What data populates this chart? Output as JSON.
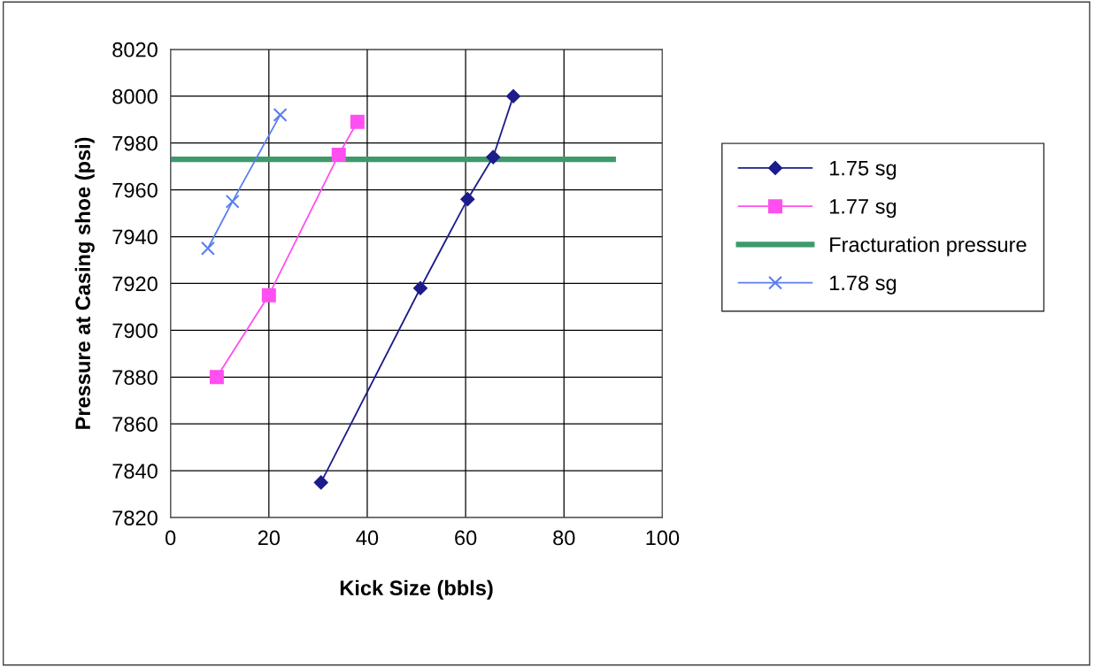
{
  "chart_data": {
    "type": "line",
    "xlabel": "Kick Size (bbls)",
    "ylabel": "Pressure at Casing shoe (psi)",
    "xlim": [
      0,
      100
    ],
    "xticks": [
      0,
      20,
      40,
      60,
      80,
      100
    ],
    "ylim": [
      7820,
      8020
    ],
    "yticks": [
      7820,
      7840,
      7860,
      7880,
      7900,
      7920,
      7940,
      7960,
      7980,
      8000,
      8020
    ],
    "grid": true,
    "legend": "right",
    "series": [
      {
        "name": "1.75 sg",
        "color": "#1c1c8a",
        "marker": "diamond",
        "x": [
          30.6,
          50.8,
          60.4,
          65.6,
          69.7
        ],
        "values": [
          7835,
          7918,
          7956,
          7974,
          8000
        ]
      },
      {
        "name": "1.77 sg",
        "color": "#ff4ff0",
        "marker": "square",
        "x": [
          9.4,
          20.0,
          34.2,
          38.0
        ],
        "values": [
          7880,
          7915,
          7975,
          7989
        ]
      },
      {
        "name": "Fracturation pressure",
        "color": "#3d9a6b",
        "marker": "none",
        "x": [
          0,
          90
        ],
        "values": [
          7973,
          7973
        ]
      },
      {
        "name": "1.78 sg",
        "color": "#5a7ef0",
        "marker": "cross",
        "x": [
          7.6,
          12.6,
          22.3
        ],
        "values": [
          7935,
          7955,
          7992
        ]
      }
    ]
  }
}
